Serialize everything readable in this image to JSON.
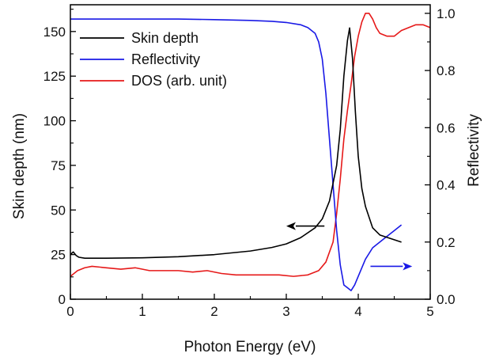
{
  "chart_data": {
    "type": "line",
    "title": "",
    "xlabel": "Photon Energy (eV)",
    "ylabel_left": "Skin depth (nm)",
    "ylabel_right": "Reflectivity",
    "xlim": [
      0,
      5
    ],
    "ylim_left": [
      0,
      165
    ],
    "ylim_right": [
      0,
      1.03
    ],
    "x_ticks": [
      "0",
      "1",
      "2",
      "3",
      "4",
      "5"
    ],
    "y_left_ticks": [
      "0",
      "25",
      "50",
      "75",
      "100",
      "125",
      "150"
    ],
    "y_right_ticks": [
      "0.0",
      "0.2",
      "0.4",
      "0.6",
      "0.8",
      "1.0"
    ],
    "grid": false,
    "legend_position": "top-left",
    "series": [
      {
        "name": "Skin depth",
        "axis": "left",
        "color": "#000000",
        "x": [
          0.0,
          0.04,
          0.08,
          0.12,
          0.2,
          0.5,
          1.0,
          1.5,
          2.0,
          2.5,
          2.8,
          3.0,
          3.2,
          3.4,
          3.5,
          3.6,
          3.7,
          3.75,
          3.8,
          3.85,
          3.88,
          3.92,
          3.96,
          4.0,
          4.05,
          4.1,
          4.2,
          4.3,
          4.45,
          4.6
        ],
        "y": [
          25,
          26.5,
          24.5,
          23.5,
          23,
          23,
          23.2,
          23.8,
          25,
          27,
          29,
          31,
          34.5,
          40,
          45,
          55,
          75,
          95,
          125,
          145,
          152,
          135,
          105,
          80,
          62,
          52,
          40,
          36,
          34,
          32
        ]
      },
      {
        "name": "Reflectivity",
        "axis": "right",
        "color": "#1919e6",
        "x": [
          0.0,
          0.5,
          1.0,
          1.5,
          2.0,
          2.5,
          2.8,
          3.0,
          3.2,
          3.3,
          3.4,
          3.45,
          3.5,
          3.55,
          3.6,
          3.65,
          3.7,
          3.75,
          3.8,
          3.85,
          3.9,
          3.95,
          4.0,
          4.1,
          4.2,
          4.3,
          4.4,
          4.5,
          4.6
        ],
        "y": [
          0.98,
          0.98,
          0.98,
          0.98,
          0.978,
          0.975,
          0.972,
          0.968,
          0.96,
          0.95,
          0.93,
          0.9,
          0.84,
          0.72,
          0.56,
          0.4,
          0.24,
          0.12,
          0.05,
          0.04,
          0.03,
          0.05,
          0.08,
          0.14,
          0.18,
          0.2,
          0.22,
          0.24,
          0.26
        ]
      },
      {
        "name": "DOS (arb. unit)",
        "axis": "right",
        "color": "#e61919",
        "x": [
          0.0,
          0.1,
          0.2,
          0.3,
          0.5,
          0.7,
          0.9,
          1.1,
          1.3,
          1.5,
          1.7,
          1.9,
          2.1,
          2.3,
          2.5,
          2.7,
          2.9,
          3.1,
          3.3,
          3.45,
          3.55,
          3.65,
          3.7,
          3.75,
          3.8,
          3.85,
          3.9,
          3.95,
          4.0,
          4.05,
          4.1,
          4.15,
          4.2,
          4.25,
          4.3,
          4.4,
          4.5,
          4.6,
          4.7,
          4.8,
          4.9,
          5.0
        ],
        "y": [
          0.08,
          0.1,
          0.11,
          0.115,
          0.11,
          0.105,
          0.11,
          0.1,
          0.1,
          0.1,
          0.095,
          0.1,
          0.09,
          0.085,
          0.085,
          0.085,
          0.085,
          0.08,
          0.085,
          0.1,
          0.13,
          0.2,
          0.3,
          0.42,
          0.56,
          0.66,
          0.75,
          0.85,
          0.92,
          0.97,
          1.0,
          1.0,
          0.98,
          0.95,
          0.93,
          0.92,
          0.92,
          0.94,
          0.95,
          0.96,
          0.96,
          0.95
        ]
      }
    ],
    "annotations": [
      {
        "type": "arrow",
        "direction": "left",
        "color": "#000000",
        "x_from": 3.53,
        "x_to": 3.0,
        "y": 41,
        "axis": "left"
      },
      {
        "type": "arrow",
        "direction": "right",
        "color": "#1919e6",
        "x_from": 4.17,
        "x_to": 4.75,
        "y": 0.115,
        "axis": "right"
      }
    ]
  }
}
